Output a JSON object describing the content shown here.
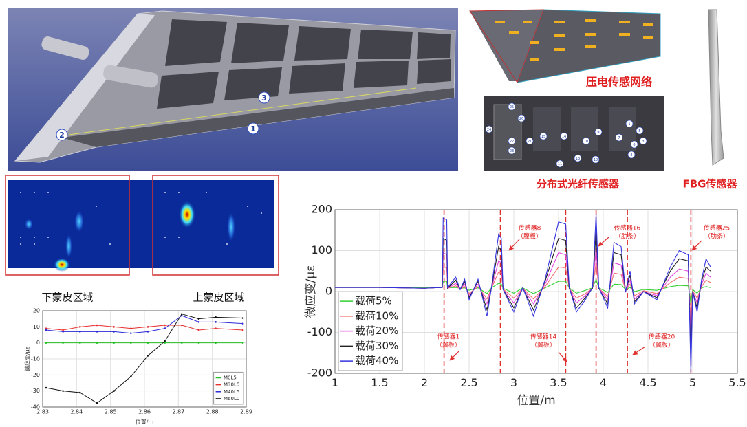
{
  "wing_labels": [
    "1",
    "2",
    "3"
  ],
  "captions": {
    "piezo": "压电传感网络",
    "fiber": "分布式光纤传感器",
    "fbg": "FBG传感器"
  },
  "fiber_points": [
    "25",
    "26",
    "24",
    "23",
    "22",
    "21",
    "15",
    "14",
    "13",
    "12",
    "11",
    "10",
    "9",
    "7",
    "6",
    "5",
    "3",
    "2",
    "1"
  ],
  "chart_data": [
    {
      "type": "line",
      "region_labels": [
        "下蒙皮区域",
        "上蒙皮区域"
      ],
      "xlabel": "位置/m",
      "ylabel": "微应变/με",
      "xlim": [
        2.83,
        2.89
      ],
      "xticks": [
        2.83,
        2.84,
        2.85,
        2.86,
        2.87,
        2.88,
        2.89
      ],
      "ylim": [
        -40,
        20
      ],
      "yticks": [
        -40,
        -30,
        -20,
        -10,
        0,
        10,
        20
      ],
      "grid": true,
      "markers": true,
      "legend": "lower right",
      "x": [
        2.831,
        2.836,
        2.841,
        2.846,
        2.851,
        2.856,
        2.861,
        2.866,
        2.871,
        2.876,
        2.881,
        2.889
      ],
      "series": [
        {
          "name": "M0L5",
          "color": "#22c022",
          "values": [
            0,
            0,
            0,
            0,
            0,
            0,
            0,
            0,
            0,
            0,
            0,
            0
          ]
        },
        {
          "name": "M30L5",
          "color": "#e83030",
          "values": [
            9,
            8,
            10,
            11,
            10,
            9,
            10,
            11,
            11,
            8,
            9,
            8
          ]
        },
        {
          "name": "M40L5",
          "color": "#2a2ad8",
          "values": [
            8,
            7,
            7,
            7,
            7,
            6,
            7,
            9,
            17,
            13,
            13,
            12
          ]
        },
        {
          "name": "M60L0",
          "color": "#111111",
          "values": [
            -28,
            -30,
            -31,
            -37.5,
            -30,
            -21,
            -8,
            1,
            18,
            15,
            16,
            15.5
          ]
        }
      ]
    },
    {
      "type": "line",
      "xlabel": "位置/m",
      "ylabel": "微应变/με",
      "xlim": [
        1,
        5.5
      ],
      "xticks": [
        1,
        1.5,
        2,
        2.5,
        3,
        3.5,
        4,
        4.5,
        5,
        5.5
      ],
      "ylim": [
        -200,
        200
      ],
      "yticks": [
        -200,
        -100,
        0,
        100,
        200
      ],
      "grid": true,
      "markers": false,
      "legend": "lower left",
      "vlines": [
        2.22,
        2.85,
        3.58,
        3.92,
        4.27,
        4.98
      ],
      "vline_color": "#e03030",
      "annotations": [
        {
          "label": "传感器8",
          "part": "（腹板）"
        },
        {
          "label": "传感器16",
          "part": "（肋条）"
        },
        {
          "label": "传感器25",
          "part": "（肋条）"
        },
        {
          "label": "传感器1",
          "part": "（翼板）"
        },
        {
          "label": "传感器14",
          "part": "（翼板）"
        },
        {
          "label": "传感器20",
          "part": "（翼板）"
        }
      ],
      "x": [
        1,
        1.5,
        2,
        2.2,
        2.21,
        2.25,
        2.26,
        2.35,
        2.4,
        2.45,
        2.5,
        2.6,
        2.7,
        2.75,
        2.83,
        2.86,
        2.88,
        3.0,
        3.1,
        3.22,
        3.35,
        3.5,
        3.58,
        3.62,
        3.7,
        3.8,
        3.88,
        3.92,
        3.95,
        4.05,
        4.12,
        4.2,
        4.25,
        4.3,
        4.35,
        4.45,
        4.6,
        4.75,
        4.85,
        4.95,
        4.98,
        5.0,
        5.05,
        5.1,
        5.15,
        5.2
      ],
      "series": [
        {
          "name": "载荷5%",
          "color": "#30d030",
          "values": [
            10,
            10,
            9,
            10,
            25,
            25,
            9,
            10,
            8,
            9,
            3,
            9,
            -5,
            9,
            20,
            18,
            8,
            -4,
            9,
            -5,
            9,
            25,
            25,
            9,
            -4,
            3,
            9,
            30,
            9,
            -2,
            18,
            17,
            5,
            10,
            0,
            5,
            3,
            12,
            15,
            14,
            -30,
            5,
            -4,
            9,
            12,
            10
          ]
        },
        {
          "name": "载荷10%",
          "color": "#f07070",
          "values": [
            10,
            10,
            8,
            10,
            60,
            58,
            8,
            14,
            6,
            12,
            -5,
            12,
            -18,
            8,
            48,
            45,
            6,
            -16,
            8,
            -18,
            12,
            60,
            58,
            8,
            -16,
            -5,
            8,
            70,
            8,
            -12,
            45,
            42,
            2,
            18,
            -10,
            2,
            -5,
            22,
            35,
            32,
            -70,
            2,
            -16,
            12,
            28,
            22
          ]
        },
        {
          "name": "载荷20%",
          "color": "#e040e0",
          "values": [
            10,
            10,
            8,
            10,
            95,
            90,
            8,
            20,
            5,
            18,
            -10,
            18,
            -30,
            8,
            75,
            70,
            5,
            -28,
            8,
            -30,
            18,
            95,
            90,
            8,
            -28,
            -10,
            8,
            105,
            8,
            -20,
            70,
            65,
            0,
            28,
            -18,
            0,
            -10,
            35,
            55,
            50,
            -110,
            0,
            -28,
            18,
            45,
            35
          ]
        },
        {
          "name": "载荷30%",
          "color": "#222222",
          "values": [
            10,
            10,
            8,
            10,
            130,
            125,
            8,
            28,
            5,
            25,
            -15,
            25,
            -45,
            8,
            110,
            100,
            5,
            -40,
            8,
            -45,
            25,
            130,
            125,
            8,
            -40,
            -15,
            8,
            150,
            8,
            -30,
            95,
            90,
            0,
            40,
            -25,
            0,
            -15,
            50,
            80,
            75,
            -160,
            0,
            -40,
            25,
            60,
            50
          ]
        },
        {
          "name": "载荷40%",
          "color": "#3535e0",
          "values": [
            10,
            10,
            8,
            10,
            180,
            175,
            10,
            35,
            5,
            30,
            -20,
            30,
            -60,
            10,
            140,
            130,
            5,
            -50,
            10,
            -60,
            30,
            170,
            165,
            10,
            -50,
            -20,
            10,
            190,
            10,
            -40,
            120,
            110,
            0,
            50,
            -30,
            0,
            -20,
            60,
            100,
            90,
            -200,
            0,
            -50,
            30,
            80,
            60
          ]
        }
      ]
    }
  ]
}
